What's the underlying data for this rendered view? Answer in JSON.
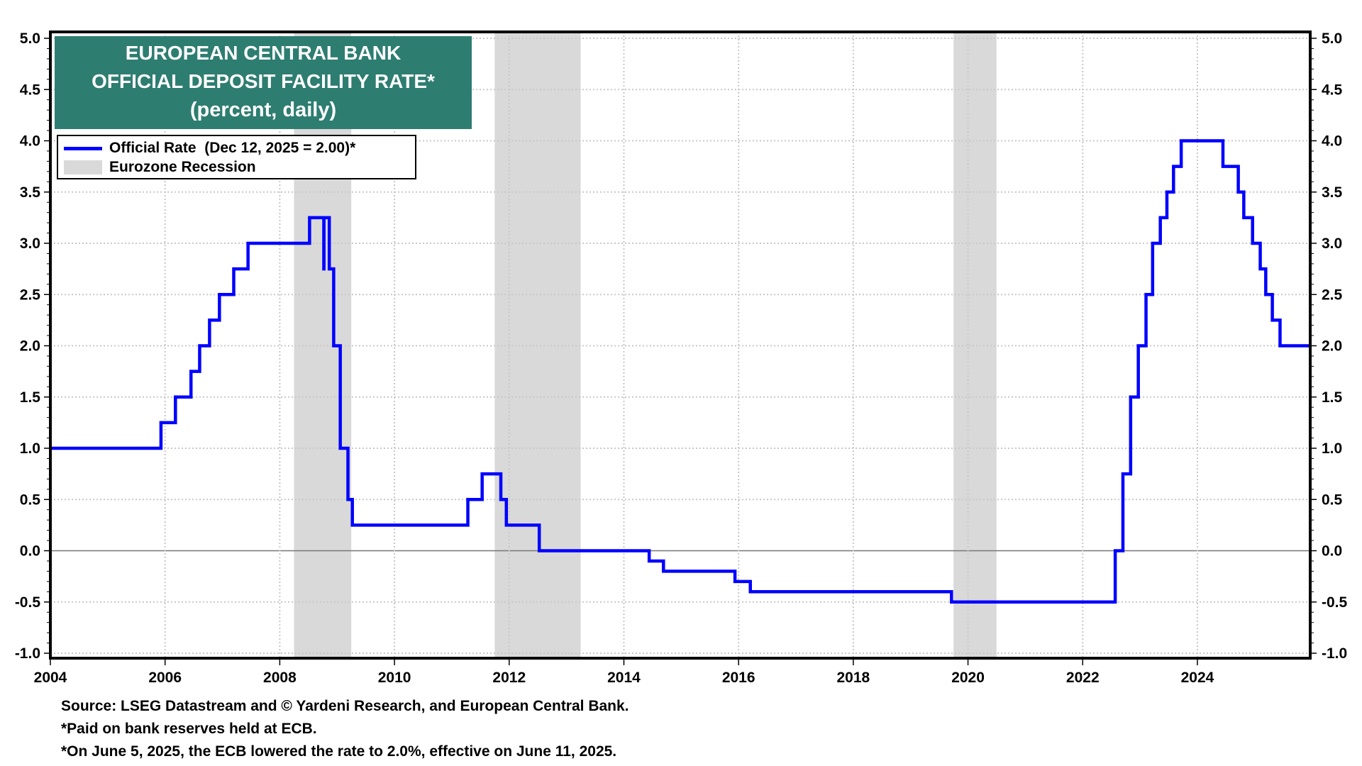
{
  "chart_data": {
    "type": "line",
    "title": [
      "EUROPEAN CENTRAL BANK",
      "OFFICIAL DEPOSIT FACILITY RATE*",
      "(percent, daily)"
    ],
    "xlim": [
      "2004-01-01",
      "2025-12-20"
    ],
    "ylim": [
      -1.0,
      5.0
    ],
    "yticks": [
      "-1.0",
      "-0.5",
      "0.0",
      "0.5",
      "1.0",
      "1.5",
      "2.0",
      "2.5",
      "3.0",
      "3.5",
      "4.0",
      "4.5",
      "5.0"
    ],
    "xticks": [
      "2004",
      "2006",
      "2008",
      "2010",
      "2012",
      "2014",
      "2016",
      "2018",
      "2020",
      "2022",
      "2024"
    ],
    "grid": true,
    "legend_placement": "top-left",
    "legend": [
      {
        "label": "Official Rate  (Dec 12, 2025 = 2.00)*",
        "type": "line",
        "color": "#0000ff"
      },
      {
        "label": "Eurozone Recession",
        "type": "shade",
        "color": "#d9d9d9"
      }
    ],
    "recessions": [
      [
        "2008-04-01",
        "2009-04-01"
      ],
      [
        "2011-10-01",
        "2013-04-01"
      ],
      [
        "2019-10-01",
        "2020-07-01"
      ]
    ],
    "series": [
      {
        "name": "Official Rate",
        "color": "#0000ff",
        "steps": [
          [
            "2004-01-01",
            1.0
          ],
          [
            "2005-12-06",
            1.25
          ],
          [
            "2006-03-08",
            1.5
          ],
          [
            "2006-06-15",
            1.75
          ],
          [
            "2006-08-09",
            2.0
          ],
          [
            "2006-10-11",
            2.25
          ],
          [
            "2006-12-13",
            2.5
          ],
          [
            "2007-03-14",
            2.75
          ],
          [
            "2007-06-13",
            3.0
          ],
          [
            "2008-07-09",
            3.25
          ],
          [
            "2008-10-08",
            2.75
          ],
          [
            "2008-10-09",
            3.25
          ],
          [
            "2008-11-12",
            2.75
          ],
          [
            "2008-12-10",
            2.0
          ],
          [
            "2009-01-21",
            1.0
          ],
          [
            "2009-03-11",
            0.5
          ],
          [
            "2009-04-08",
            0.25
          ],
          [
            "2011-04-13",
            0.5
          ],
          [
            "2011-07-13",
            0.75
          ],
          [
            "2011-11-09",
            0.5
          ],
          [
            "2011-12-14",
            0.25
          ],
          [
            "2012-07-11",
            0.0
          ],
          [
            "2014-06-11",
            -0.1
          ],
          [
            "2014-09-10",
            -0.2
          ],
          [
            "2015-12-09",
            -0.3
          ],
          [
            "2016-03-16",
            -0.4
          ],
          [
            "2019-09-18",
            -0.5
          ],
          [
            "2022-07-27",
            0.0
          ],
          [
            "2022-09-14",
            0.75
          ],
          [
            "2022-11-02",
            1.5
          ],
          [
            "2022-12-21",
            2.0
          ],
          [
            "2023-02-08",
            2.5
          ],
          [
            "2023-03-22",
            3.0
          ],
          [
            "2023-05-10",
            3.25
          ],
          [
            "2023-06-21",
            3.5
          ],
          [
            "2023-08-02",
            3.75
          ],
          [
            "2023-09-20",
            4.0
          ],
          [
            "2024-06-12",
            3.75
          ],
          [
            "2024-09-18",
            3.5
          ],
          [
            "2024-10-23",
            3.25
          ],
          [
            "2024-12-18",
            3.0
          ],
          [
            "2025-02-05",
            2.75
          ],
          [
            "2025-03-12",
            2.5
          ],
          [
            "2025-04-23",
            2.25
          ],
          [
            "2025-06-11",
            2.0
          ],
          [
            "2025-12-12",
            2.0
          ]
        ]
      }
    ]
  },
  "notes": [
    "Source: LSEG Datastream and © Yardeni Research, and European Central Bank.",
    "*Paid on bank reserves held at ECB.",
    "*On June 5, 2025, the ECB lowered the rate to 2.0%, effective on June 11, 2025."
  ]
}
